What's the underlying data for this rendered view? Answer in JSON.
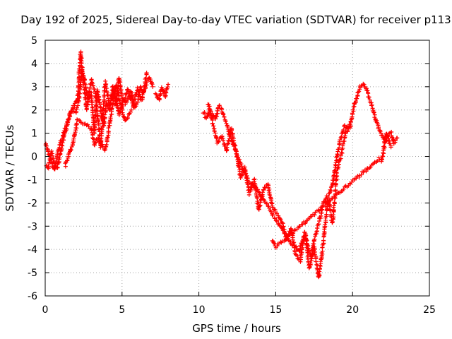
{
  "chart_data": {
    "type": "scatter",
    "title": "Day 192 of 2025, Sidereal Day-to-day VTEC variation (SDTVAR) for receiver p113",
    "xlabel": "GPS time / hours",
    "ylabel": "SDTVAR / TECUs",
    "xlim": [
      0,
      25
    ],
    "ylim": [
      -6,
      5
    ],
    "xticks": [
      "0",
      "5",
      "10",
      "15",
      "20",
      "25"
    ],
    "yticks": [
      "-6",
      "-5",
      "-4",
      "-3",
      "-2",
      "-1",
      "0",
      "1",
      "2",
      "3",
      "4",
      "5"
    ],
    "grid": true,
    "marker": "+",
    "series": [
      {
        "name": "SDTVAR",
        "color": "#ff0000",
        "segments": [
          {
            "x": [
              0.0,
              0.2,
              0.4,
              0.6,
              0.8,
              1.0,
              1.2,
              1.4,
              1.6,
              1.8,
              2.0,
              2.2,
              2.4,
              2.6,
              2.8,
              3.0,
              3.2,
              3.4,
              3.6,
              3.8,
              4.0,
              4.2,
              4.4,
              4.6,
              4.8,
              5.0,
              5.2,
              5.4,
              5.6,
              5.8,
              6.0,
              6.2,
              6.4,
              6.6,
              6.8,
              7.0
            ],
            "y": [
              -0.3,
              -0.5,
              0.2,
              -0.4,
              -0.5,
              0.2,
              0.8,
              1.3,
              1.8,
              2.0,
              1.9,
              2.5,
              3.8,
              3.1,
              2.4,
              2.7,
              1.0,
              2.9,
              2.1,
              1.3,
              2.3,
              2.0,
              3.0,
              2.2,
              3.4,
              2.6,
              2.3,
              2.5,
              2.8,
              2.1,
              2.4,
              3.0,
              2.7,
              3.2,
              3.4,
              3.0
            ]
          },
          {
            "x": [
              0.0,
              0.3,
              0.6,
              0.9,
              1.2,
              1.5,
              1.8,
              2.1,
              2.3,
              2.7,
              3.0,
              3.3,
              3.6,
              3.9,
              4.2,
              4.5,
              4.8,
              5.1,
              5.4,
              5.7,
              6.0,
              6.3,
              6.6
            ],
            "y": [
              0.6,
              0.0,
              -0.6,
              0.4,
              1.0,
              1.6,
              2.1,
              2.4,
              4.5,
              2.0,
              3.3,
              2.6,
              0.4,
              3.2,
              2.2,
              2.8,
              1.8,
              2.4,
              2.9,
              2.2,
              2.9,
              2.4,
              3.6
            ]
          },
          {
            "x": [
              1.3,
              1.5,
              1.8,
              2.1,
              3.0,
              3.2,
              3.4,
              3.9,
              4.0,
              4.6,
              5.2,
              5.6
            ],
            "y": [
              -0.4,
              0.0,
              0.5,
              1.6,
              1.2,
              0.5,
              0.8,
              0.3,
              0.6,
              3.1,
              1.5,
              2.0
            ]
          },
          {
            "x": [
              7.2,
              7.4,
              7.6,
              7.8,
              8.0
            ],
            "y": [
              2.7,
              2.4,
              3.0,
              2.6,
              3.1
            ]
          },
          {
            "x": [
              10.3,
              10.5,
              10.7,
              10.9,
              11.1,
              11.3,
              11.5,
              11.7,
              11.9,
              12.1,
              12.3,
              12.5,
              12.7,
              12.9,
              13.1,
              13.3,
              13.5,
              13.7,
              13.9,
              14.1,
              14.3,
              14.5,
              14.7,
              14.9,
              15.1,
              15.3,
              15.5,
              15.7,
              15.9,
              16.1,
              16.3,
              16.5,
              16.7,
              16.9,
              17.1,
              17.3,
              17.5,
              17.7,
              17.9,
              18.1,
              18.3,
              18.5,
              18.7,
              18.9,
              19.1,
              19.3,
              19.5,
              19.7,
              19.9,
              20.1,
              20.3,
              20.5,
              20.7,
              20.9,
              21.1,
              21.3,
              21.5,
              21.7,
              21.9,
              22.1,
              22.3,
              22.5,
              22.7,
              22.9
            ],
            "y": [
              1.9,
              1.6,
              2.0,
              1.8,
              1.6,
              2.2,
              2.0,
              1.6,
              1.2,
              0.8,
              0.4,
              0.0,
              -0.3,
              -0.6,
              -0.9,
              -1.1,
              -1.2,
              -1.4,
              -1.5,
              -1.8,
              -2.0,
              -2.1,
              -2.4,
              -2.6,
              -2.8,
              -3.0,
              -3.2,
              -3.4,
              -3.6,
              -3.8,
              -3.9,
              -4.1,
              -3.7,
              -3.4,
              -3.9,
              -4.4,
              -3.6,
              -3.1,
              -2.6,
              -2.0,
              -1.8,
              -1.6,
              -1.2,
              -0.4,
              0.4,
              1.0,
              1.3,
              1.1,
              1.5,
              2.2,
              2.6,
              3.0,
              3.1,
              2.9,
              2.5,
              2.1,
              1.6,
              1.2,
              0.9,
              0.6,
              0.9,
              1.0,
              0.6,
              0.8
            ]
          },
          {
            "x": [
              10.6,
              10.9,
              11.2,
              11.5,
              11.8,
              12.1,
              12.4,
              12.7,
              13.0,
              13.3,
              13.6,
              13.9,
              14.2,
              14.5,
              14.8,
              15.1,
              15.4,
              15.7,
              16.0,
              16.3,
              16.6,
              16.9,
              17.2,
              17.5,
              17.8,
              18.1,
              18.4,
              18.7,
              19.0,
              19.3,
              19.6,
              19.9
            ],
            "y": [
              2.3,
              1.4,
              0.6,
              0.9,
              0.2,
              1.2,
              0.3,
              -0.9,
              -0.5,
              -1.6,
              -1.0,
              -2.3,
              -1.4,
              -1.2,
              -2.2,
              -2.5,
              -2.8,
              -3.6,
              -3.1,
              -4.2,
              -4.5,
              -3.2,
              -4.8,
              -3.9,
              -5.2,
              -3.7,
              -1.8,
              -2.9,
              -0.6,
              0.2,
              1.2,
              1.3
            ]
          },
          {
            "x": [
              14.8,
              15.0,
              21.7,
              21.9,
              22.2,
              22.5
            ],
            "y": [
              -3.6,
              -3.9,
              -0.1,
              -0.2,
              1.0,
              0.4
            ]
          }
        ]
      }
    ]
  }
}
